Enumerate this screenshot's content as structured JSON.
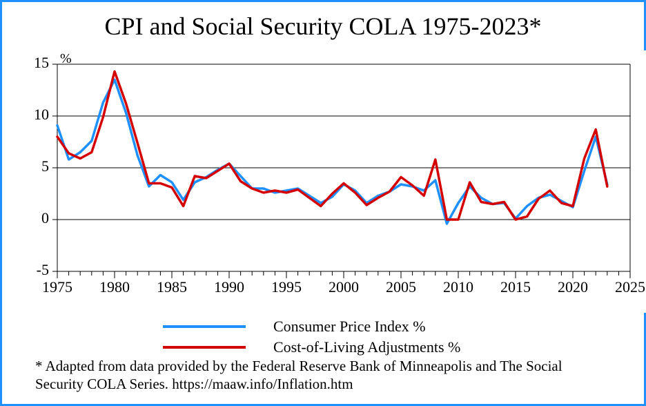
{
  "title": "CPI and Social Security COLA 1975-2023*",
  "footnote": "* Adapted from data provided by the Federal Reserve Bank of Minneapolis  and The Social Security COLA Series. https://maaw.info/Inflation.htm",
  "chart": {
    "type": "line",
    "background_color": "#ffffff",
    "axis_color": "#000000",
    "grid_color": "#000000",
    "grid_line_width": 1,
    "title_fontsize": 36,
    "tick_fontsize": 22,
    "line_width": 3.5,
    "xlim": [
      1975,
      2025
    ],
    "ylim": [
      -5,
      15
    ],
    "x_ticks": [
      1975,
      1980,
      1985,
      1990,
      1995,
      2000,
      2005,
      2010,
      2015,
      2020,
      2025
    ],
    "x_minor_step": 1,
    "y_ticks": [
      -5,
      0,
      5,
      10,
      15
    ],
    "y_unit_label": "%",
    "years": [
      1975,
      1976,
      1977,
      1978,
      1979,
      1980,
      1981,
      1982,
      1983,
      1984,
      1985,
      1986,
      1987,
      1988,
      1989,
      1990,
      1991,
      1992,
      1993,
      1994,
      1995,
      1996,
      1997,
      1998,
      1999,
      2000,
      2001,
      2002,
      2003,
      2004,
      2005,
      2006,
      2007,
      2008,
      2009,
      2010,
      2011,
      2012,
      2013,
      2014,
      2015,
      2016,
      2017,
      2018,
      2019,
      2020,
      2021,
      2022,
      2023
    ],
    "series": [
      {
        "key": "cpi",
        "label": "Consumer Price Index %",
        "color": "#1e90ff",
        "values": [
          9.1,
          5.8,
          6.5,
          7.6,
          11.3,
          13.5,
          10.3,
          6.2,
          3.2,
          4.3,
          3.6,
          1.9,
          3.6,
          4.1,
          4.8,
          5.4,
          4.2,
          3.0,
          3.0,
          2.6,
          2.8,
          3.0,
          2.3,
          1.6,
          2.2,
          3.4,
          2.8,
          1.6,
          2.3,
          2.7,
          3.4,
          3.2,
          2.8,
          3.8,
          -0.4,
          1.6,
          3.2,
          2.1,
          1.5,
          1.6,
          0.1,
          1.3,
          2.1,
          2.4,
          1.8,
          1.2,
          4.7,
          8.0,
          3.4
        ]
      },
      {
        "key": "cola",
        "label": "Cost-of-Living Adjustments %",
        "color": "#d40000",
        "values": [
          8.0,
          6.4,
          5.9,
          6.5,
          9.9,
          14.3,
          11.2,
          7.4,
          3.5,
          3.5,
          3.1,
          1.3,
          4.2,
          4.0,
          4.7,
          5.4,
          3.7,
          3.0,
          2.6,
          2.8,
          2.6,
          2.9,
          2.1,
          1.3,
          2.5,
          3.5,
          2.6,
          1.4,
          2.1,
          2.7,
          4.1,
          3.3,
          2.3,
          5.8,
          0.0,
          0.0,
          3.6,
          1.7,
          1.5,
          1.7,
          0.0,
          0.3,
          2.0,
          2.8,
          1.6,
          1.3,
          5.9,
          8.7,
          3.2
        ]
      }
    ],
    "legend_swatch_width": 120
  }
}
